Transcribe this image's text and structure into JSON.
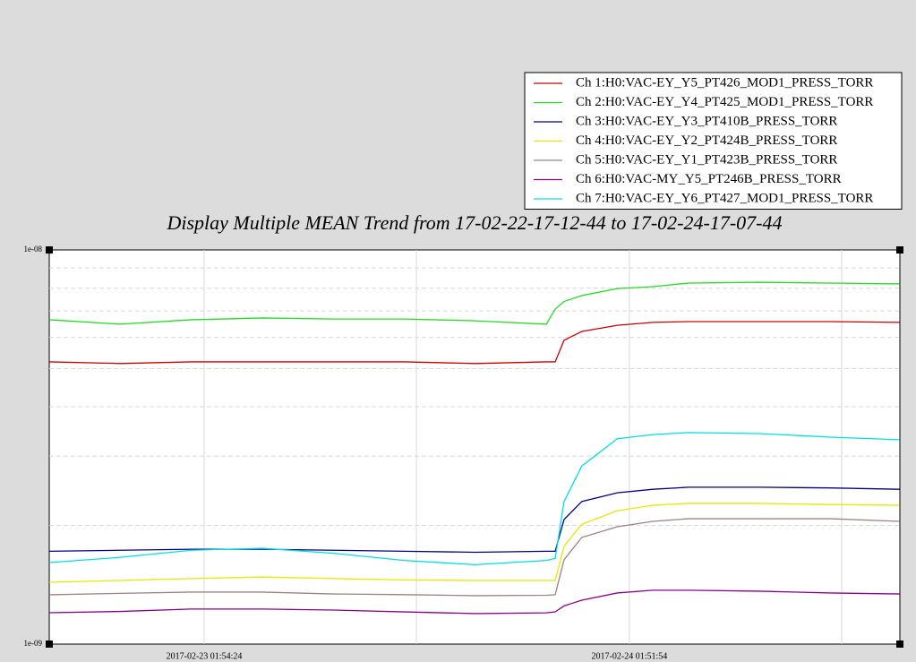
{
  "chart_data": {
    "type": "line",
    "title": "Display Multiple MEAN Trend from 17-02-22-17-12-44 to 17-02-24-17-07-44",
    "log_y": true,
    "grid": true,
    "legend": "top-right",
    "xlim": [
      0,
      47.917
    ],
    "xticks": [
      {
        "value": 8.726,
        "label": "2017-02-23 01:54:24"
      },
      {
        "value": 32.68,
        "label": "2017-02-24 01:51:54"
      }
    ],
    "minor_xticks": [
      20.68,
      44.64
    ],
    "ylim": [
      1e-09,
      1e-08
    ],
    "yticks": [
      {
        "value": 1e-09,
        "label": "1e-09"
      },
      {
        "value": 1e-08,
        "label": "1e-08"
      }
    ],
    "minor_yticks": [
      2e-09,
      3e-09,
      4e-09,
      5e-09,
      6e-09,
      7e-09,
      8e-09,
      9e-09
    ],
    "x": [
      0,
      4,
      8,
      12,
      16,
      20,
      24,
      28,
      28.5,
      29,
      30,
      32,
      34,
      36,
      40,
      44,
      47.9
    ],
    "series": [
      {
        "name": "Ch 1:H0:VAC-EY_Y5_PT426_MOD1_PRESS_TORR",
        "color": "#cc0000",
        "values": [
          5.2e-09,
          5.15e-09,
          5.2e-09,
          5.2e-09,
          5.2e-09,
          5.2e-09,
          5.15e-09,
          5.2e-09,
          5.2e-09,
          5.9e-09,
          6.21e-09,
          6.44e-09,
          6.55e-09,
          6.58e-09,
          6.58e-09,
          6.58e-09,
          6.55e-09
        ]
      },
      {
        "name": "Ch 2:H0:VAC-EY_Y4_PT425_MOD1_PRESS_TORR",
        "color": "#22dd22",
        "values": [
          6.65e-09,
          6.48e-09,
          6.65e-09,
          6.72e-09,
          6.68e-09,
          6.68e-09,
          6.61e-09,
          6.48e-09,
          7.08e-09,
          7.4e-09,
          7.66e-09,
          7.98e-09,
          8.07e-09,
          8.24e-09,
          8.28e-09,
          8.24e-09,
          8.2e-09
        ]
      },
      {
        "name": "Ch 3:H0:VAC-EY_Y3_PT410B_PRESS_TORR",
        "color": "#00008b",
        "values": [
          1.72e-09,
          1.73e-09,
          1.74e-09,
          1.74e-09,
          1.73e-09,
          1.72e-09,
          1.71e-09,
          1.72e-09,
          1.72e-09,
          2.07e-09,
          2.3e-09,
          2.42e-09,
          2.47e-09,
          2.5e-09,
          2.5e-09,
          2.49e-09,
          2.47e-09
        ]
      },
      {
        "name": "Ch 4:H0:VAC-EY_Y2_PT424B_PRESS_TORR",
        "color": "#e8e800",
        "values": [
          1.435e-09,
          1.45e-09,
          1.466e-09,
          1.48e-09,
          1.466e-09,
          1.455e-09,
          1.45e-09,
          1.45e-09,
          1.45e-09,
          1.77e-09,
          2.015e-09,
          2.18e-09,
          2.25e-09,
          2.275e-09,
          2.275e-09,
          2.26e-09,
          2.25e-09
        ]
      },
      {
        "name": "Ch 5:H0:VAC-EY_Y1_PT423B_PRESS_TORR",
        "color": "#a08080",
        "values": [
          1.334e-09,
          1.345e-09,
          1.355e-09,
          1.355e-09,
          1.34e-09,
          1.335e-09,
          1.327e-09,
          1.33e-09,
          1.334e-09,
          1.637e-09,
          1.865e-09,
          1.985e-09,
          2.048e-09,
          2.08e-09,
          2.08e-09,
          2.08e-09,
          2.048e-09
        ]
      },
      {
        "name": "Ch 6:H0:VAC-MY_Y5_PT246B_PRESS_TORR",
        "color": "#8b008b",
        "values": [
          1.201e-09,
          1.21e-09,
          1.227e-09,
          1.227e-09,
          1.22e-09,
          1.207e-09,
          1.195e-09,
          1.2e-09,
          1.207e-09,
          1.25e-09,
          1.292e-09,
          1.348e-09,
          1.37e-09,
          1.37e-09,
          1.362e-09,
          1.348e-09,
          1.34e-09
        ]
      },
      {
        "name": "Ch 7:H0:VAC-EY_Y6_PT427_MOD1_PRESS_TORR",
        "color": "#00e0e0",
        "values": [
          1.61e-09,
          1.66e-09,
          1.73e-09,
          1.75e-09,
          1.7e-09,
          1.63e-09,
          1.59e-09,
          1.63e-09,
          1.65e-09,
          2.3e-09,
          2.83e-09,
          3.32e-09,
          3.4e-09,
          3.44e-09,
          3.42e-09,
          3.35e-09,
          3.3e-09
        ]
      }
    ]
  }
}
